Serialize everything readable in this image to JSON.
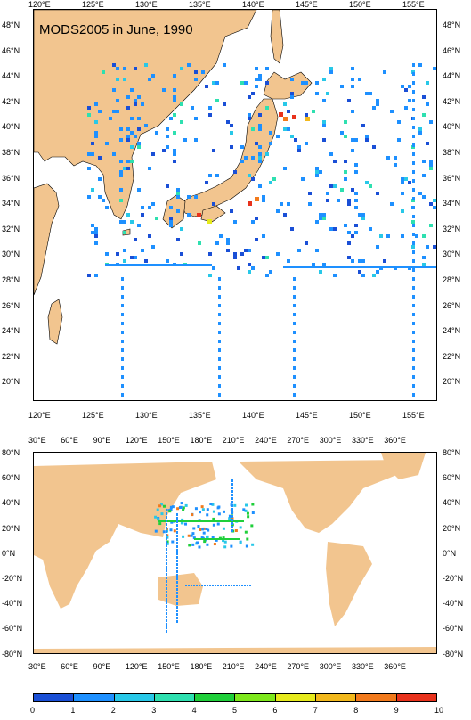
{
  "title": "MODS2005 in June, 1990",
  "colors": {
    "land": "#f2c58f",
    "ocean": "#ffffff",
    "scale": [
      "#1a4fd6",
      "#1e90ff",
      "#28c8e8",
      "#2ee0b0",
      "#1fcf3a",
      "#7ee81c",
      "#e6ea1c",
      "#f2b81c",
      "#f27a1c",
      "#e8321c"
    ]
  },
  "map1": {
    "lon_labels": [
      "120°E",
      "125°E",
      "130°E",
      "135°E",
      "140°E",
      "145°E",
      "150°E",
      "155°E"
    ],
    "lat_labels": [
      "48°N",
      "46°N",
      "44°N",
      "42°N",
      "40°N",
      "38°N",
      "36°N",
      "34°N",
      "32°N",
      "30°N",
      "28°N",
      "26°N",
      "24°N",
      "22°N",
      "20°N"
    ]
  },
  "map2": {
    "lon_labels": [
      "30°E",
      "60°E",
      "90°E",
      "120°E",
      "150°E",
      "180°E",
      "210°E",
      "240°E",
      "270°E",
      "300°E",
      "330°E",
      "360°E"
    ],
    "lat_labels": [
      "80°N",
      "60°N",
      "40°N",
      "20°N",
      "0°N",
      "-20°N",
      "-40°N",
      "-60°N",
      "-80°N"
    ]
  },
  "colorbar": {
    "labels": [
      "0",
      "1",
      "2",
      "3",
      "4",
      "5",
      "6",
      "7",
      "8",
      "9",
      "10"
    ]
  }
}
